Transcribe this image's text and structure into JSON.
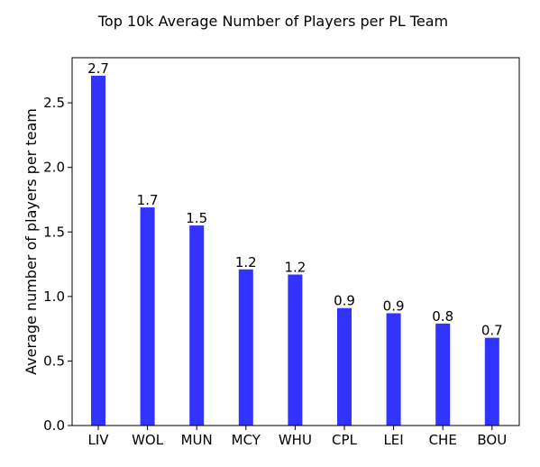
{
  "chart_data": {
    "type": "bar",
    "title": "Top 10k Average Number of Players per PL Team",
    "xlabel": "",
    "ylabel": "Average number of players per team",
    "categories": [
      "LIV",
      "WOL",
      "MUN",
      "MCY",
      "WHU",
      "CPL",
      "LEI",
      "CHE",
      "BOU"
    ],
    "values": [
      2.71,
      1.69,
      1.55,
      1.21,
      1.17,
      0.91,
      0.87,
      0.79,
      0.68
    ],
    "data_labels": [
      "2.7",
      "1.7",
      "1.5",
      "1.2",
      "1.2",
      "0.9",
      "0.9",
      "0.8",
      "0.7"
    ],
    "ylim": [
      0,
      2.85
    ],
    "yticks": [
      "0.0",
      "0.5",
      "1.0",
      "1.5",
      "2.0",
      "2.5"
    ],
    "grid": false,
    "bar_color": "#3333ff"
  }
}
